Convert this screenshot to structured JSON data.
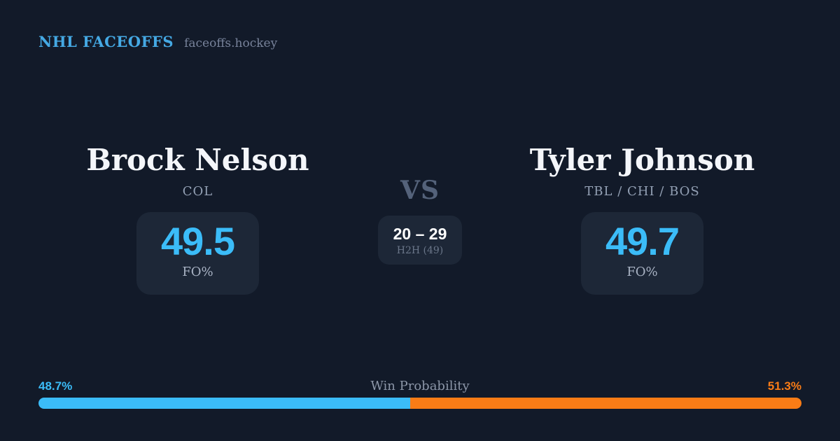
{
  "header": {
    "brand": "NHL FACEOFFS",
    "site": "faceoffs.hockey"
  },
  "left_player": {
    "name": "Brock Nelson",
    "teams": "COL",
    "fo_value": "49.5",
    "fo_label": "FO%"
  },
  "right_player": {
    "name": "Tyler Johnson",
    "teams": "TBL / CHI / BOS",
    "fo_value": "49.7",
    "fo_label": "FO%"
  },
  "matchup": {
    "vs": "VS",
    "h2h_score": "20 – 29",
    "h2h_label": "H2H (49)"
  },
  "win_probability": {
    "label": "Win Probability",
    "left_text": "48.7%",
    "right_text": "51.3%",
    "left_value": 48.7,
    "right_value": 51.3
  },
  "colors": {
    "accent_blue": "#3bbcf8",
    "accent_orange": "#f97c16",
    "brand_blue": "#45a9e4",
    "background": "#121a29",
    "card": "#1d2737"
  }
}
